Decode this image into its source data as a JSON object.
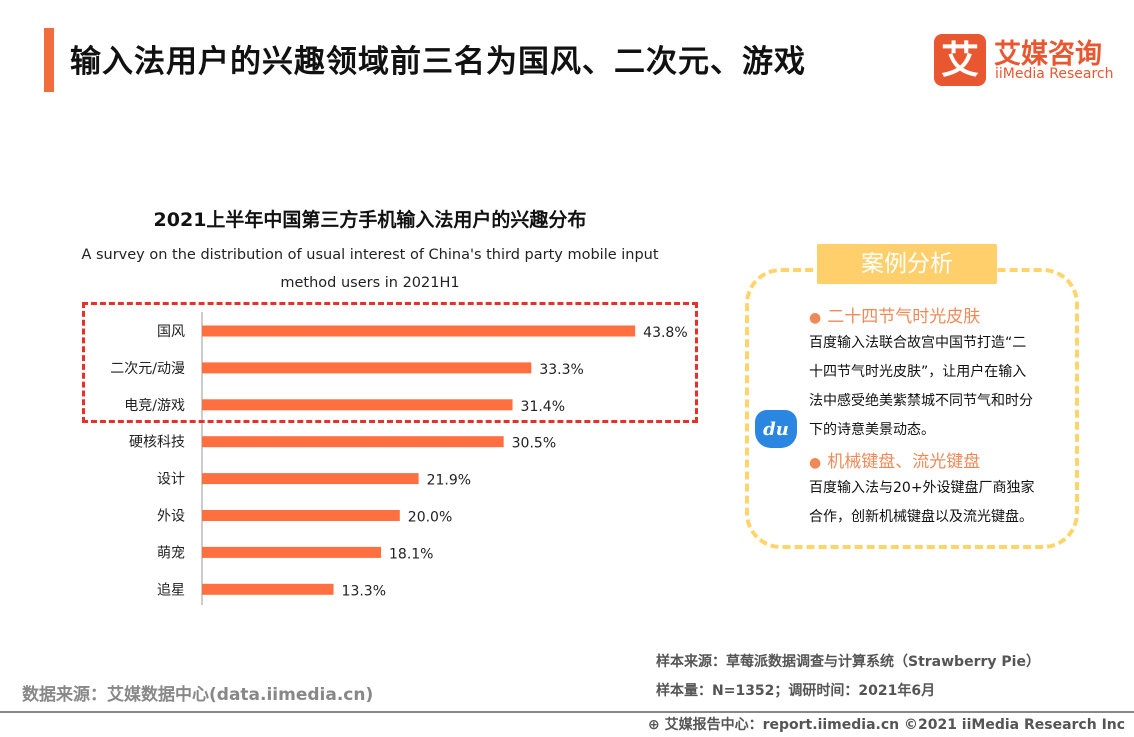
{
  "header": {
    "title": "输入法用户的兴趣领域前三名为国风、二次元、游戏",
    "logo_mark": "艾",
    "logo_cn": "艾媒咨询",
    "logo_en": "iiMedia Research",
    "accent": "#f26d3d"
  },
  "chart_data": {
    "type": "bar",
    "orientation": "horizontal",
    "title": "2021上半年中国第三方手机输入法用户的兴趣分布",
    "subtitle": "A survey on the distribution of usual interest of China's third party mobile input method users  in 2021H1",
    "categories": [
      "国风",
      "二次元/动漫",
      "电竞/游戏",
      "硬核科技",
      "设计",
      "外设",
      "萌宠",
      "追星"
    ],
    "values": [
      43.8,
      33.3,
      31.4,
      30.5,
      21.9,
      20.0,
      18.1,
      13.3
    ],
    "labels": [
      "43.8%",
      "33.3%",
      "31.4%",
      "30.5%",
      "21.9%",
      "20.0%",
      "18.1%",
      "13.3%"
    ],
    "unit": "%",
    "bar_color": "#ff6f3f",
    "highlight_top_n": 3,
    "highlight_color": "#e8302a",
    "grid": false
  },
  "case": {
    "tag": "案例分析",
    "items": [
      {
        "title": "二十四节气时光皮肤",
        "lines": [
          "百度输入法联合故宫中国节打造“二",
          "十四节气时光皮肤”，让用户在输入",
          "法中感受绝美紫禁城不同节气和时分",
          "下的诗意美景动态。"
        ]
      },
      {
        "title": "机械键盘、流光键盘",
        "lines": [
          "百度输入法与20+外设键盘厂商独家",
          "合作，创新机械键盘以及流光键盘。"
        ]
      }
    ],
    "icon_text": "du"
  },
  "footer": {
    "source": "数据来源：艾媒数据中心(data.iimedia.cn)",
    "sample_source": "样本来源：草莓派数据调查与计算系统（Strawberry Pie）",
    "sample_size": "样本量：N=1352；调研时间：2021年6月",
    "report": "艾媒报告中心：report.iimedia.cn   ©2021  iiMedia Research  Inc"
  }
}
